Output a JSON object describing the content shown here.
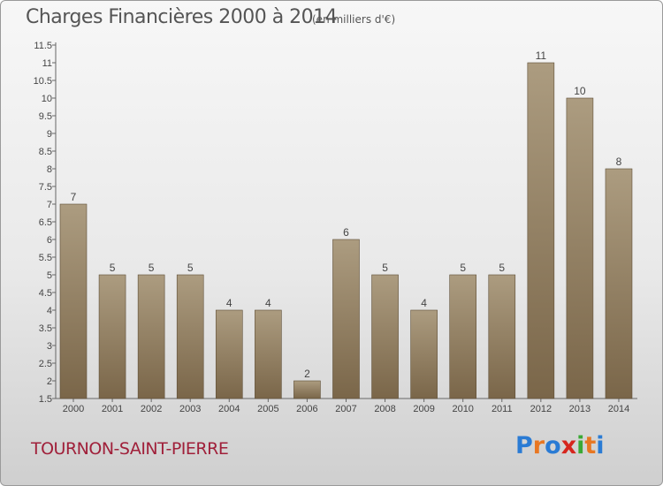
{
  "header": {
    "title": "Charges Financières 2000 à 2014",
    "subtitle": "(en milliers d'€)"
  },
  "footer": {
    "commune": "TOURNON-SAINT-PIERRE",
    "logo": "Proxiti"
  },
  "colors": {
    "bar_top": "#ac9c80",
    "bar_bottom": "#7a6649",
    "logo_letters": [
      "#2a7bd4",
      "#e87722",
      "#2a7bd4",
      "#d6261e",
      "#3aa935",
      "#e87722",
      "#2a7bd4"
    ]
  },
  "chart_data": {
    "type": "bar",
    "title": "Charges Financières 2000 à 2014",
    "subtitle": "(en milliers d'€)",
    "categories": [
      "2000",
      "2001",
      "2002",
      "2003",
      "2004",
      "2005",
      "2006",
      "2007",
      "2008",
      "2009",
      "2010",
      "2011",
      "2012",
      "2013",
      "2014"
    ],
    "values": [
      7,
      5,
      5,
      5,
      4,
      4,
      2,
      6,
      5,
      4,
      5,
      5,
      11,
      10,
      8
    ],
    "yticks": [
      "1.5",
      "2",
      "2.5",
      "3",
      "3.5",
      "4",
      "4.5",
      "5",
      "5.5",
      "6",
      "6.5",
      "7",
      "7.5",
      "8",
      "8.5",
      "9",
      "9.5",
      "10",
      "10.5",
      "11",
      "11.5"
    ],
    "ylim": [
      1.5,
      11.5
    ],
    "grid": false,
    "legend": "none"
  }
}
